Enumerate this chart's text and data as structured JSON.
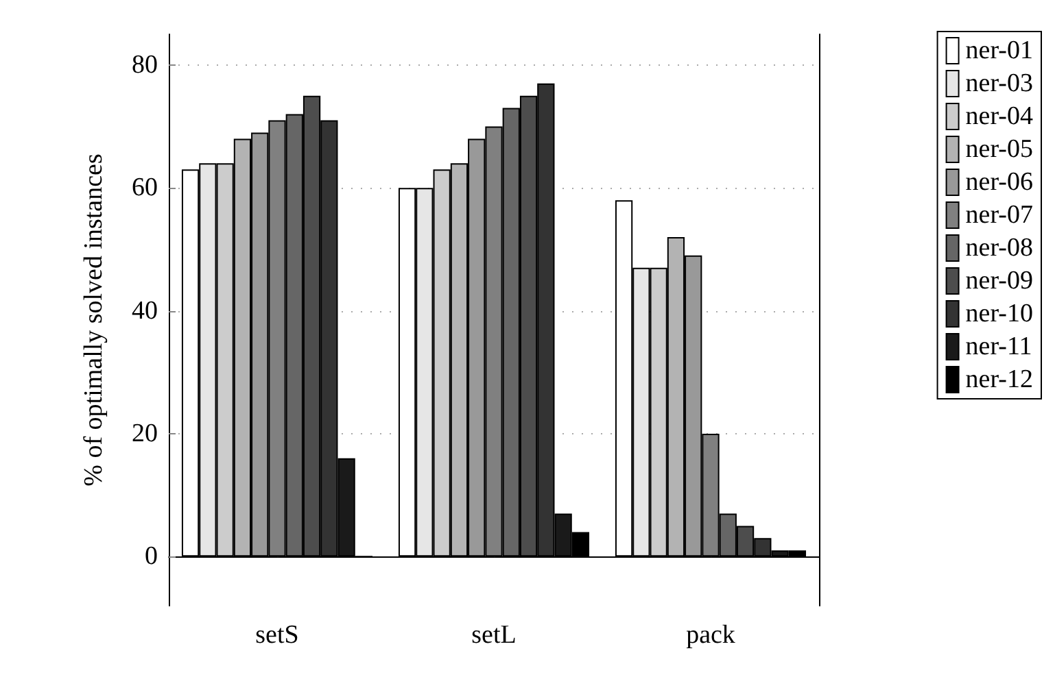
{
  "chart_data": {
    "type": "bar",
    "ylabel": "% of optimally solved instances",
    "categories": [
      "setS",
      "setL",
      "pack"
    ],
    "series": [
      {
        "name": "ner-01",
        "color": "#ffffff",
        "values": [
          63,
          60,
          58
        ]
      },
      {
        "name": "ner-03",
        "color": "#e6e6e6",
        "values": [
          64,
          60,
          47
        ]
      },
      {
        "name": "ner-04",
        "color": "#cccccc",
        "values": [
          64,
          63,
          47
        ]
      },
      {
        "name": "ner-05",
        "color": "#b3b3b3",
        "values": [
          68,
          64,
          52
        ]
      },
      {
        "name": "ner-06",
        "color": "#999999",
        "values": [
          69,
          68,
          49
        ]
      },
      {
        "name": "ner-07",
        "color": "#808080",
        "values": [
          71,
          70,
          20
        ]
      },
      {
        "name": "ner-08",
        "color": "#666666",
        "values": [
          72,
          73,
          7
        ]
      },
      {
        "name": "ner-09",
        "color": "#4d4d4d",
        "values": [
          75,
          75,
          5
        ]
      },
      {
        "name": "ner-10",
        "color": "#333333",
        "values": [
          71,
          77,
          3
        ]
      },
      {
        "name": "ner-11",
        "color": "#1a1a1a",
        "values": [
          16,
          7,
          1
        ]
      },
      {
        "name": "ner-12",
        "color": "#000000",
        "values": [
          0,
          4,
          1
        ]
      }
    ],
    "ylim": [
      -8,
      85
    ],
    "yticks": [
      0,
      20,
      40,
      60,
      80
    ],
    "grid": "y",
    "legend": "right"
  }
}
